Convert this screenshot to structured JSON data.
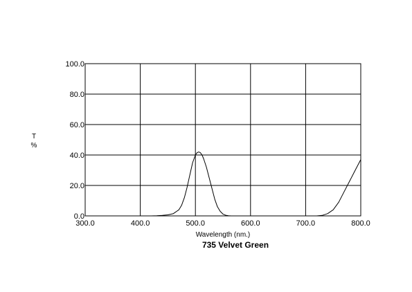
{
  "chart_data": {
    "type": "line",
    "title": "735 Velvet Green",
    "xlabel": "Wavelength (nm.)",
    "ylabel_top": "T",
    "ylabel_bottom": "%",
    "xlim": [
      300,
      800
    ],
    "ylim": [
      0,
      100
    ],
    "grid": true,
    "xticks": [
      300,
      400,
      500,
      600,
      700,
      800
    ],
    "yticks": [
      0,
      20,
      40,
      60,
      80,
      100
    ],
    "xtick_labels": [
      "300.0",
      "400.0",
      "500.0",
      "600.0",
      "700.0",
      "800.0"
    ],
    "ytick_labels": [
      "0.0",
      "20.0",
      "40.0",
      "60.0",
      "80.0",
      "100.0"
    ],
    "line_color": "#000000",
    "series": [
      {
        "x": [
          412,
          420,
          430,
          440,
          450,
          460,
          470,
          475,
          480,
          485,
          490,
          495,
          500,
          503,
          506,
          509,
          512,
          515,
          520,
          525,
          530,
          535,
          540,
          545,
          550,
          555,
          560,
          565,
          570,
          580,
          590,
          600,
          650,
          700,
          720,
          730,
          740,
          750,
          760,
          770,
          780,
          790,
          800
        ],
        "y": [
          0,
          0,
          0.1,
          0.3,
          0.7,
          1.5,
          4,
          7,
          12,
          19,
          27,
          35,
          40,
          41.5,
          42,
          41.5,
          40,
          37.5,
          32,
          25,
          18,
          11,
          6,
          3,
          1.2,
          0.4,
          0.1,
          0,
          0,
          0,
          0,
          0,
          0,
          0,
          0,
          0.3,
          1.5,
          4,
          9,
          16,
          23,
          30,
          37
        ]
      }
    ]
  }
}
